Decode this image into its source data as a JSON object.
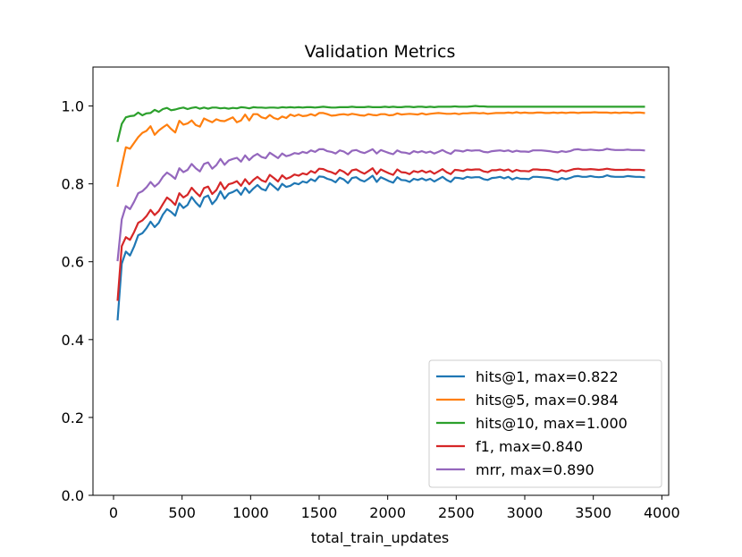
{
  "chart_data": {
    "type": "line",
    "title": "Validation Metrics",
    "xlabel": "total_train_updates",
    "ylabel": "",
    "xlim": [
      -150,
      4050
    ],
    "ylim": [
      0.0,
      1.1
    ],
    "xticks": [
      0,
      500,
      1000,
      1500,
      2000,
      2500,
      3000,
      3500,
      4000
    ],
    "yticks": [
      0.0,
      0.2,
      0.4,
      0.6,
      0.8,
      1.0
    ],
    "xtick_labels": [
      "0",
      "500",
      "1000",
      "1500",
      "2000",
      "2500",
      "3000",
      "3500",
      "4000"
    ],
    "ytick_labels": [
      "0.0",
      "0.2",
      "0.4",
      "0.6",
      "0.8",
      "1.0"
    ],
    "legend_position": "lower-right",
    "x_start": 30,
    "x_step": 30,
    "series": [
      {
        "name": "hits@1",
        "legend": "hits@1, max=0.822",
        "color": "#1f77b4",
        "values": [
          0.452,
          0.595,
          0.626,
          0.616,
          0.639,
          0.668,
          0.673,
          0.686,
          0.703,
          0.689,
          0.7,
          0.721,
          0.735,
          0.728,
          0.718,
          0.75,
          0.738,
          0.746,
          0.766,
          0.752,
          0.741,
          0.765,
          0.77,
          0.748,
          0.76,
          0.781,
          0.762,
          0.775,
          0.779,
          0.785,
          0.772,
          0.79,
          0.777,
          0.788,
          0.797,
          0.787,
          0.783,
          0.802,
          0.793,
          0.784,
          0.8,
          0.792,
          0.795,
          0.802,
          0.799,
          0.806,
          0.803,
          0.812,
          0.807,
          0.819,
          0.818,
          0.813,
          0.81,
          0.804,
          0.816,
          0.811,
          0.802,
          0.815,
          0.817,
          0.81,
          0.806,
          0.813,
          0.821,
          0.805,
          0.817,
          0.812,
          0.807,
          0.803,
          0.817,
          0.81,
          0.809,
          0.805,
          0.813,
          0.81,
          0.814,
          0.809,
          0.813,
          0.806,
          0.812,
          0.818,
          0.81,
          0.805,
          0.816,
          0.815,
          0.813,
          0.818,
          0.816,
          0.817,
          0.817,
          0.812,
          0.81,
          0.815,
          0.816,
          0.818,
          0.814,
          0.818,
          0.811,
          0.816,
          0.813,
          0.813,
          0.812,
          0.818,
          0.818,
          0.817,
          0.816,
          0.815,
          0.812,
          0.81,
          0.815,
          0.812,
          0.815,
          0.819,
          0.82,
          0.818,
          0.818,
          0.82,
          0.818,
          0.817,
          0.818,
          0.822,
          0.819,
          0.818,
          0.818,
          0.818,
          0.82,
          0.819,
          0.818,
          0.818,
          0.817
        ]
      },
      {
        "name": "hits@5",
        "legend": "hits@5, max=0.984",
        "color": "#ff7f0e",
        "values": [
          0.795,
          0.846,
          0.894,
          0.89,
          0.905,
          0.92,
          0.931,
          0.936,
          0.948,
          0.926,
          0.937,
          0.945,
          0.952,
          0.941,
          0.932,
          0.962,
          0.952,
          0.955,
          0.963,
          0.951,
          0.947,
          0.968,
          0.963,
          0.958,
          0.966,
          0.962,
          0.961,
          0.966,
          0.971,
          0.958,
          0.963,
          0.978,
          0.963,
          0.979,
          0.979,
          0.971,
          0.968,
          0.977,
          0.969,
          0.966,
          0.973,
          0.969,
          0.978,
          0.974,
          0.978,
          0.974,
          0.975,
          0.979,
          0.975,
          0.982,
          0.982,
          0.979,
          0.975,
          0.976,
          0.978,
          0.979,
          0.977,
          0.98,
          0.978,
          0.976,
          0.975,
          0.979,
          0.977,
          0.976,
          0.979,
          0.979,
          0.976,
          0.977,
          0.981,
          0.978,
          0.979,
          0.98,
          0.979,
          0.978,
          0.981,
          0.978,
          0.98,
          0.981,
          0.982,
          0.981,
          0.98,
          0.98,
          0.981,
          0.979,
          0.981,
          0.981,
          0.982,
          0.982,
          0.981,
          0.982,
          0.98,
          0.981,
          0.982,
          0.982,
          0.982,
          0.983,
          0.982,
          0.984,
          0.982,
          0.983,
          0.982,
          0.982,
          0.983,
          0.983,
          0.982,
          0.982,
          0.983,
          0.982,
          0.983,
          0.982,
          0.983,
          0.983,
          0.982,
          0.983,
          0.983,
          0.983,
          0.984,
          0.983,
          0.983,
          0.983,
          0.982,
          0.983,
          0.982,
          0.983,
          0.983,
          0.982,
          0.983,
          0.983,
          0.982
        ]
      },
      {
        "name": "hits@10",
        "legend": "hits@10, max=1.000",
        "color": "#2ca02c",
        "values": [
          0.91,
          0.954,
          0.971,
          0.974,
          0.975,
          0.983,
          0.976,
          0.981,
          0.982,
          0.99,
          0.985,
          0.992,
          0.995,
          0.989,
          0.991,
          0.994,
          0.996,
          0.992,
          0.995,
          0.997,
          0.993,
          0.996,
          0.993,
          0.996,
          0.996,
          0.994,
          0.995,
          0.993,
          0.995,
          0.994,
          0.997,
          0.996,
          0.994,
          0.997,
          0.996,
          0.996,
          0.995,
          0.996,
          0.996,
          0.995,
          0.997,
          0.996,
          0.997,
          0.996,
          0.997,
          0.996,
          0.997,
          0.997,
          0.996,
          0.997,
          0.998,
          0.997,
          0.996,
          0.996,
          0.997,
          0.997,
          0.997,
          0.998,
          0.997,
          0.997,
          0.997,
          0.998,
          0.997,
          0.997,
          0.997,
          0.998,
          0.997,
          0.998,
          0.997,
          0.997,
          0.998,
          0.998,
          0.997,
          0.998,
          0.998,
          0.997,
          0.998,
          0.997,
          0.998,
          0.998,
          0.998,
          0.998,
          0.999,
          0.998,
          0.998,
          0.998,
          0.999,
          1.0,
          0.999,
          0.999,
          0.998,
          0.998,
          0.998,
          0.998,
          0.998,
          0.998,
          0.998,
          0.998,
          0.998,
          0.998,
          0.998,
          0.998,
          0.998,
          0.998,
          0.998,
          0.998,
          0.998,
          0.998,
          0.998,
          0.998,
          0.998,
          0.998,
          0.998,
          0.998,
          0.998,
          0.998,
          0.998,
          0.998,
          0.998,
          0.998,
          0.998,
          0.998,
          0.998,
          0.998,
          0.998,
          0.998,
          0.998,
          0.998,
          0.998
        ]
      },
      {
        "name": "f1",
        "legend": "f1, max=0.840",
        "color": "#d62728",
        "values": [
          0.502,
          0.64,
          0.663,
          0.656,
          0.676,
          0.7,
          0.706,
          0.717,
          0.733,
          0.72,
          0.73,
          0.748,
          0.765,
          0.757,
          0.746,
          0.776,
          0.765,
          0.772,
          0.79,
          0.778,
          0.768,
          0.789,
          0.793,
          0.774,
          0.784,
          0.804,
          0.786,
          0.799,
          0.802,
          0.807,
          0.795,
          0.812,
          0.799,
          0.81,
          0.818,
          0.809,
          0.805,
          0.823,
          0.815,
          0.806,
          0.822,
          0.813,
          0.817,
          0.824,
          0.821,
          0.827,
          0.824,
          0.833,
          0.828,
          0.839,
          0.838,
          0.833,
          0.83,
          0.825,
          0.836,
          0.831,
          0.823,
          0.835,
          0.837,
          0.831,
          0.826,
          0.833,
          0.84,
          0.825,
          0.837,
          0.832,
          0.827,
          0.823,
          0.837,
          0.83,
          0.829,
          0.825,
          0.833,
          0.83,
          0.834,
          0.829,
          0.833,
          0.826,
          0.832,
          0.838,
          0.83,
          0.825,
          0.836,
          0.835,
          0.833,
          0.837,
          0.836,
          0.837,
          0.837,
          0.832,
          0.83,
          0.835,
          0.835,
          0.837,
          0.834,
          0.837,
          0.831,
          0.836,
          0.833,
          0.833,
          0.832,
          0.837,
          0.837,
          0.836,
          0.836,
          0.835,
          0.832,
          0.83,
          0.835,
          0.832,
          0.835,
          0.838,
          0.839,
          0.837,
          0.837,
          0.838,
          0.837,
          0.836,
          0.837,
          0.839,
          0.837,
          0.836,
          0.836,
          0.836,
          0.837,
          0.836,
          0.836,
          0.836,
          0.835
        ]
      },
      {
        "name": "mrr",
        "legend": "mrr, max=0.890",
        "color": "#9467bd",
        "values": [
          0.604,
          0.709,
          0.743,
          0.735,
          0.754,
          0.776,
          0.781,
          0.791,
          0.805,
          0.793,
          0.802,
          0.818,
          0.829,
          0.822,
          0.813,
          0.84,
          0.83,
          0.836,
          0.851,
          0.84,
          0.832,
          0.851,
          0.855,
          0.839,
          0.848,
          0.864,
          0.849,
          0.86,
          0.864,
          0.867,
          0.857,
          0.873,
          0.861,
          0.871,
          0.877,
          0.869,
          0.866,
          0.88,
          0.873,
          0.866,
          0.878,
          0.871,
          0.874,
          0.879,
          0.877,
          0.882,
          0.879,
          0.886,
          0.882,
          0.889,
          0.889,
          0.884,
          0.882,
          0.878,
          0.886,
          0.883,
          0.876,
          0.885,
          0.887,
          0.882,
          0.879,
          0.884,
          0.889,
          0.878,
          0.887,
          0.883,
          0.879,
          0.876,
          0.886,
          0.881,
          0.88,
          0.877,
          0.884,
          0.881,
          0.884,
          0.88,
          0.883,
          0.878,
          0.882,
          0.887,
          0.881,
          0.877,
          0.886,
          0.885,
          0.883,
          0.887,
          0.885,
          0.886,
          0.886,
          0.882,
          0.881,
          0.884,
          0.885,
          0.886,
          0.884,
          0.886,
          0.882,
          0.885,
          0.883,
          0.883,
          0.882,
          0.886,
          0.886,
          0.886,
          0.885,
          0.884,
          0.882,
          0.881,
          0.884,
          0.882,
          0.884,
          0.888,
          0.889,
          0.887,
          0.887,
          0.888,
          0.887,
          0.886,
          0.887,
          0.89,
          0.888,
          0.887,
          0.887,
          0.887,
          0.888,
          0.887,
          0.887,
          0.887,
          0.886
        ]
      }
    ]
  }
}
